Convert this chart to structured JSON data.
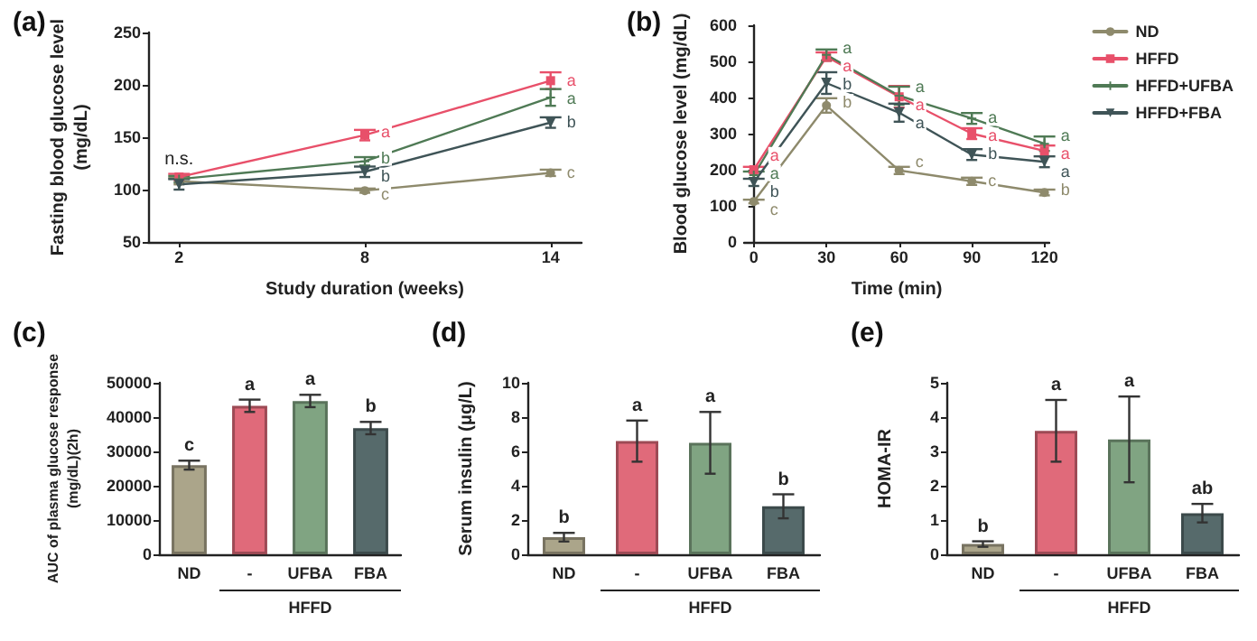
{
  "chart_data": [
    {
      "type": "line",
      "title": "(a)",
      "xlabel": "Study duration (weeks)",
      "ylabel": "Fasting blood glucose level\n(mg/dL)",
      "x": [
        2,
        8,
        14
      ],
      "xlim": [
        1,
        15
      ],
      "xticks": [
        2,
        8,
        14
      ],
      "ylim": [
        50,
        250
      ],
      "yticks": [
        50,
        100,
        150,
        200,
        250
      ],
      "grid": false,
      "legend": false,
      "annotations": [
        {
          "text": "n.s.",
          "x": 2,
          "y": 120
        }
      ],
      "series": [
        {
          "color": "#8e8a6c",
          "marker": "circle",
          "values": [
            108,
            99,
            116
          ],
          "errors": [
            3,
            2,
            3
          ],
          "value_labels": [
            null,
            "c",
            "c"
          ]
        },
        {
          "color": "#e8506a",
          "marker": "square",
          "values": [
            112,
            152,
            204
          ],
          "errors": [
            3,
            5,
            8
          ],
          "value_labels": [
            null,
            "a",
            "a"
          ]
        },
        {
          "color": "#4f7a55",
          "marker": "cross",
          "values": [
            110,
            127,
            188
          ],
          "errors": [
            3,
            4,
            8
          ],
          "value_labels": [
            null,
            "b",
            "a"
          ]
        },
        {
          "color": "#3f5457",
          "marker": "triangle",
          "values": [
            105,
            117,
            164
          ],
          "errors": [
            5,
            5,
            5
          ],
          "value_labels": [
            null,
            "b",
            "b"
          ]
        }
      ]
    },
    {
      "type": "line",
      "title": "(b)",
      "xlabel": "Time (min)",
      "ylabel": "Blood glucose level (mg/dL)",
      "x": [
        0,
        30,
        60,
        90,
        120
      ],
      "xlim": [
        -4,
        122
      ],
      "xticks": [
        0,
        30,
        60,
        90,
        120
      ],
      "ylim": [
        0,
        600
      ],
      "yticks": [
        0,
        100,
        200,
        300,
        400,
        500,
        600
      ],
      "grid": false,
      "legend": "top right",
      "series": [
        {
          "name": "ND",
          "color": "#8e8a6c",
          "marker": "circle",
          "values": [
            112,
            378,
            198,
            168,
            137
          ],
          "errors": [
            5,
            20,
            10,
            10,
            8
          ],
          "value_labels": [
            "c",
            "b",
            "c",
            "c",
            "b"
          ]
        },
        {
          "name": "HFFD",
          "color": "#e8506a",
          "marker": "square",
          "values": [
            200,
            513,
            402,
            300,
            252
          ],
          "errors": [
            8,
            12,
            30,
            15,
            15
          ],
          "value_labels": [
            "a",
            "a",
            "a",
            "a",
            "a"
          ]
        },
        {
          "name": "HFFD+UFBA",
          "color": "#4f7a55",
          "marker": "cross",
          "values": [
            185,
            518,
            405,
            342,
            272
          ],
          "errors": [
            10,
            15,
            25,
            15,
            20
          ],
          "value_labels": [
            "a",
            "a",
            "a",
            "a",
            "a"
          ]
        },
        {
          "name": "HFFD+FBA",
          "color": "#3f5457",
          "marker": "triangle",
          "values": [
            165,
            440,
            358,
            242,
            222
          ],
          "errors": [
            10,
            30,
            25,
            15,
            15
          ],
          "value_labels": [
            "b",
            "b",
            "a",
            "b",
            "a"
          ]
        }
      ]
    },
    {
      "type": "bar",
      "title": "(c)",
      "ylabel": "AUC of plasma glucose response\n(mg/dL)(2h)",
      "categories": [
        "ND",
        "-",
        "UFBA",
        "FBA"
      ],
      "values": [
        26000,
        43300,
        44700,
        36800
      ],
      "errors": [
        1300,
        1800,
        1800,
        1800
      ],
      "value_labels": [
        "c",
        "a",
        "a",
        "b"
      ],
      "colors": [
        "#aba58a",
        "#e06a7a",
        "#80a482",
        "#566a6b"
      ],
      "ylim": [
        0,
        50000
      ],
      "yticks": [
        0,
        10000,
        20000,
        30000,
        40000,
        50000
      ],
      "grid": false,
      "annotations": [
        "HFFD"
      ]
    },
    {
      "type": "bar",
      "title": "(d)",
      "ylabel": "Serum insulin (μg/L)",
      "categories": [
        "ND",
        "-",
        "UFBA",
        "FBA"
      ],
      "values": [
        1.0,
        6.6,
        6.5,
        2.8
      ],
      "errors": [
        0.25,
        1.2,
        1.8,
        0.7
      ],
      "value_labels": [
        "b",
        "a",
        "a",
        "b"
      ],
      "colors": [
        "#aba58a",
        "#e06a7a",
        "#80a482",
        "#566a6b"
      ],
      "ylim": [
        0,
        10
      ],
      "yticks": [
        0,
        2,
        4,
        6,
        8,
        10
      ],
      "grid": false,
      "annotations": [
        "HFFD"
      ]
    },
    {
      "type": "bar",
      "title": "(e)",
      "ylabel": "HOMA-IR",
      "categories": [
        "ND",
        "-",
        "UFBA",
        "FBA"
      ],
      "values": [
        0.3,
        3.6,
        3.35,
        1.2
      ],
      "errors": [
        0.08,
        0.9,
        1.25,
        0.27
      ],
      "value_labels": [
        "b",
        "a",
        "a",
        "ab"
      ],
      "colors": [
        "#aba58a",
        "#e06a7a",
        "#80a482",
        "#566a6b"
      ],
      "ylim": [
        0,
        5
      ],
      "yticks": [
        0,
        1,
        2,
        3,
        4,
        5
      ],
      "grid": false,
      "annotations": [
        "HFFD"
      ]
    }
  ]
}
